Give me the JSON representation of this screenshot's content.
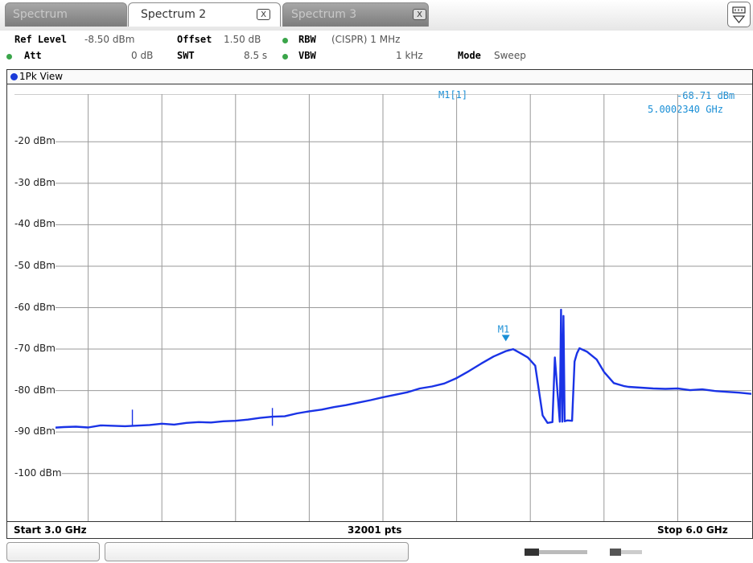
{
  "tabs": [
    {
      "label": "Spectrum",
      "active": false,
      "close": ""
    },
    {
      "label": "Spectrum 2",
      "active": true,
      "close": "X"
    },
    {
      "label": "Spectrum 3",
      "active": false,
      "close": "X"
    }
  ],
  "settings": {
    "ref_level_label": "Ref Level",
    "ref_level_value": "-8.50 dBm",
    "offset_label": "Offset",
    "offset_value": "1.50 dB",
    "rbw_label": "RBW",
    "rbw_value": "(CISPR) 1 MHz",
    "att_label": "Att",
    "att_value": "0 dB",
    "swt_label": "SWT",
    "swt_value": "8.5 s",
    "vbw_label": "VBW",
    "vbw_value": "1 kHz",
    "mode_label": "Mode",
    "mode_value": "Sweep"
  },
  "window": {
    "title": "1Pk View"
  },
  "marker": {
    "label": "M1[1]",
    "level": "-68.71 dBm",
    "frequency": "5.0002340 GHz",
    "name": "M1"
  },
  "footer": {
    "start": "Start 3.0 GHz",
    "points": "32001 pts",
    "stop": "Stop 6.0 GHz"
  },
  "colors": {
    "trace": "#1a33e6",
    "marker": "#1a8fd6",
    "grid": "#9a9a9a"
  },
  "chart_data": {
    "type": "line",
    "y_tick_labels": [
      "-20 dBm",
      "-30 dBm",
      "-40 dBm",
      "-50 dBm",
      "-60 dBm",
      "-70 dBm",
      "-80 dBm",
      "-90 dBm",
      "-100 dBm"
    ],
    "ylim": [
      -111.5,
      -8.5
    ],
    "xlim": [
      3.0,
      6.0
    ],
    "grid": true,
    "series": [
      {
        "x": [
          3.0,
          3.05,
          3.1,
          3.15,
          3.2,
          3.25,
          3.3,
          3.35,
          3.45,
          3.55,
          3.6,
          3.65,
          3.7,
          3.75,
          3.8,
          3.85,
          3.9,
          3.95,
          4.0,
          4.05,
          4.1,
          4.15,
          4.2,
          4.25,
          4.3,
          4.35,
          4.4,
          4.45,
          4.5,
          4.55,
          4.6,
          4.65,
          4.7,
          4.75,
          4.8,
          4.85,
          4.9,
          4.95,
          5.0,
          5.03,
          5.06,
          5.09,
          5.12,
          5.15,
          5.17,
          5.19,
          5.2,
          5.22,
          5.225,
          5.23,
          5.235,
          5.24,
          5.25,
          5.27,
          5.28,
          5.29,
          5.3,
          5.33,
          5.37,
          5.4,
          5.44,
          5.48,
          5.5,
          5.55,
          5.6,
          5.65,
          5.7,
          5.75,
          5.8,
          5.85,
          5.9,
          5.95,
          6.0
        ],
        "y": [
          -89.2,
          -89.4,
          -89.1,
          -89.0,
          -88.8,
          -88.7,
          -88.9,
          -88.4,
          -88.6,
          -88.3,
          -88.0,
          -88.2,
          -87.8,
          -87.6,
          -87.7,
          -87.4,
          -87.3,
          -87.0,
          -86.6,
          -86.3,
          -86.2,
          -85.5,
          -85.0,
          -84.6,
          -84.0,
          -83.5,
          -82.9,
          -82.3,
          -81.6,
          -81.0,
          -80.4,
          -79.5,
          -79.0,
          -78.3,
          -77.0,
          -75.3,
          -73.5,
          -71.8,
          -70.5,
          -70.0,
          -71.0,
          -72.0,
          -74.0,
          -86.0,
          -87.8,
          -87.6,
          -72.0,
          -87.5,
          -60.5,
          -87.5,
          -62.0,
          -87.4,
          -87.2,
          -87.3,
          -73.0,
          -71.0,
          -69.8,
          -70.6,
          -72.5,
          -75.5,
          -78.2,
          -78.9,
          -79.1,
          -79.3,
          -79.5,
          -79.6,
          -79.5,
          -79.9,
          -79.7,
          -80.1,
          -80.3,
          -80.5,
          -80.8
        ]
      }
    ],
    "spurs": [
      {
        "x": 3.48,
        "y": -84.6
      },
      {
        "x": 4.05,
        "y": -84.2
      }
    ],
    "marker_point": {
      "x": 5.000234,
      "y": -68.71
    }
  }
}
